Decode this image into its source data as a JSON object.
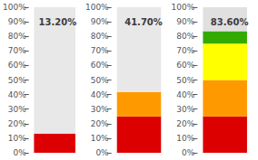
{
  "chart_data": [
    {
      "type": "bar",
      "stacked": true,
      "categories": [
        null
      ],
      "series": [
        {
          "color": "#dd0000",
          "values": [
            13.2
          ]
        },
        {
          "color": "#e8e8e8",
          "values": [
            86.8
          ]
        }
      ],
      "annotation": "13.20%",
      "ylim": [
        0,
        100
      ],
      "yticks": [
        {
          "value": 0,
          "label": "0%"
        },
        {
          "value": 10,
          "label": "10%"
        },
        {
          "value": 20,
          "label": "20%"
        },
        {
          "value": 30,
          "label": "30%"
        },
        {
          "value": 40,
          "label": "40%"
        },
        {
          "value": 50,
          "label": "50%"
        },
        {
          "value": 60,
          "label": "60%"
        },
        {
          "value": 70,
          "label": "70%"
        },
        {
          "value": 80,
          "label": "80%"
        },
        {
          "value": 90,
          "label": "90%"
        },
        {
          "value": 100,
          "label": "100%"
        }
      ],
      "grid": false,
      "tick_labels": "y"
    },
    {
      "type": "bar",
      "stacked": true,
      "categories": [
        null
      ],
      "series": [
        {
          "color": "#dd0000",
          "values": [
            25.0
          ]
        },
        {
          "color": "#ff9900",
          "values": [
            16.7
          ]
        },
        {
          "color": "#e8e8e8",
          "values": [
            58.3
          ]
        }
      ],
      "annotation": "41.70%",
      "ylim": [
        0,
        100
      ],
      "yticks": [
        {
          "value": 0,
          "label": "0%"
        },
        {
          "value": 10,
          "label": "10%"
        },
        {
          "value": 20,
          "label": "20%"
        },
        {
          "value": 30,
          "label": "30%"
        },
        {
          "value": 40,
          "label": "40%"
        },
        {
          "value": 50,
          "label": "50%"
        },
        {
          "value": 60,
          "label": "60%"
        },
        {
          "value": 70,
          "label": "70%"
        },
        {
          "value": 80,
          "label": "80%"
        },
        {
          "value": 90,
          "label": "90%"
        },
        {
          "value": 100,
          "label": "100%"
        }
      ],
      "grid": false,
      "tick_labels": "y"
    },
    {
      "type": "bar",
      "stacked": true,
      "categories": [
        null
      ],
      "series": [
        {
          "color": "#dd0000",
          "values": [
            25.0
          ]
        },
        {
          "color": "#ff9900",
          "values": [
            25.0
          ]
        },
        {
          "color": "#ffff00",
          "values": [
            25.0
          ]
        },
        {
          "color": "#33aa00",
          "values": [
            8.6
          ]
        },
        {
          "color": "#e0e0e0",
          "values": [
            16.4
          ]
        }
      ],
      "annotation": "83.60%",
      "ylim": [
        0,
        100
      ],
      "yticks": [
        {
          "value": 0,
          "label": "0%"
        },
        {
          "value": 10,
          "label": "10%"
        },
        {
          "value": 20,
          "label": "20%"
        },
        {
          "value": 30,
          "label": "30%"
        },
        {
          "value": 40,
          "label": "40%"
        },
        {
          "value": 50,
          "label": "50%"
        },
        {
          "value": 60,
          "label": "60%"
        },
        {
          "value": 70,
          "label": "70%"
        },
        {
          "value": 80,
          "label": "80%"
        },
        {
          "value": 90,
          "label": "90%"
        },
        {
          "value": 100,
          "label": "100%"
        }
      ],
      "grid": false,
      "tick_labels": "y"
    }
  ]
}
